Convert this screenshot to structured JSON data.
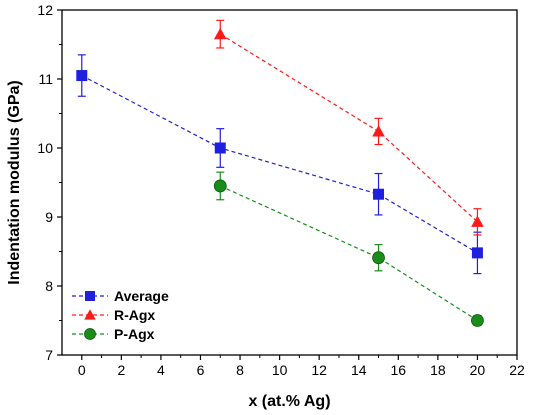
{
  "chart_data": {
    "type": "scatter",
    "title": "",
    "xlabel": "x (at.% Ag)",
    "ylabel": "Indentation modulus (GPa)",
    "xlim": [
      -1,
      22
    ],
    "ylim": [
      7,
      12
    ],
    "x_ticks": [
      0,
      2,
      4,
      6,
      8,
      10,
      12,
      14,
      16,
      18,
      20,
      22
    ],
    "y_ticks": [
      7,
      8,
      9,
      10,
      11,
      12
    ],
    "grid": false,
    "legend_position": "bottom-left",
    "series": [
      {
        "name": "Average",
        "marker": "square",
        "color": "#1f1fe0",
        "line_style": "dashed",
        "points": [
          {
            "x": 0,
            "y": 11.05,
            "err": 0.3
          },
          {
            "x": 7,
            "y": 10.0,
            "err": 0.28
          },
          {
            "x": 15,
            "y": 9.33,
            "err": 0.3
          },
          {
            "x": 20,
            "y": 8.48,
            "err": 0.3
          }
        ]
      },
      {
        "name": "R-Agx",
        "marker": "triangle",
        "color": "#ff1a1a",
        "line_style": "dashed",
        "points": [
          {
            "x": 7,
            "y": 11.65,
            "err": 0.2
          },
          {
            "x": 15,
            "y": 10.24,
            "err": 0.19
          },
          {
            "x": 20,
            "y": 8.93,
            "err": 0.19
          }
        ]
      },
      {
        "name": "P-Agx",
        "marker": "circle",
        "color": "#1a8c1a",
        "line_style": "dashed",
        "points": [
          {
            "x": 7,
            "y": 9.45,
            "err": 0.2
          },
          {
            "x": 15,
            "y": 8.41,
            "err": 0.19
          },
          {
            "x": 20,
            "y": 7.5,
            "err": 0.07
          }
        ]
      }
    ]
  }
}
